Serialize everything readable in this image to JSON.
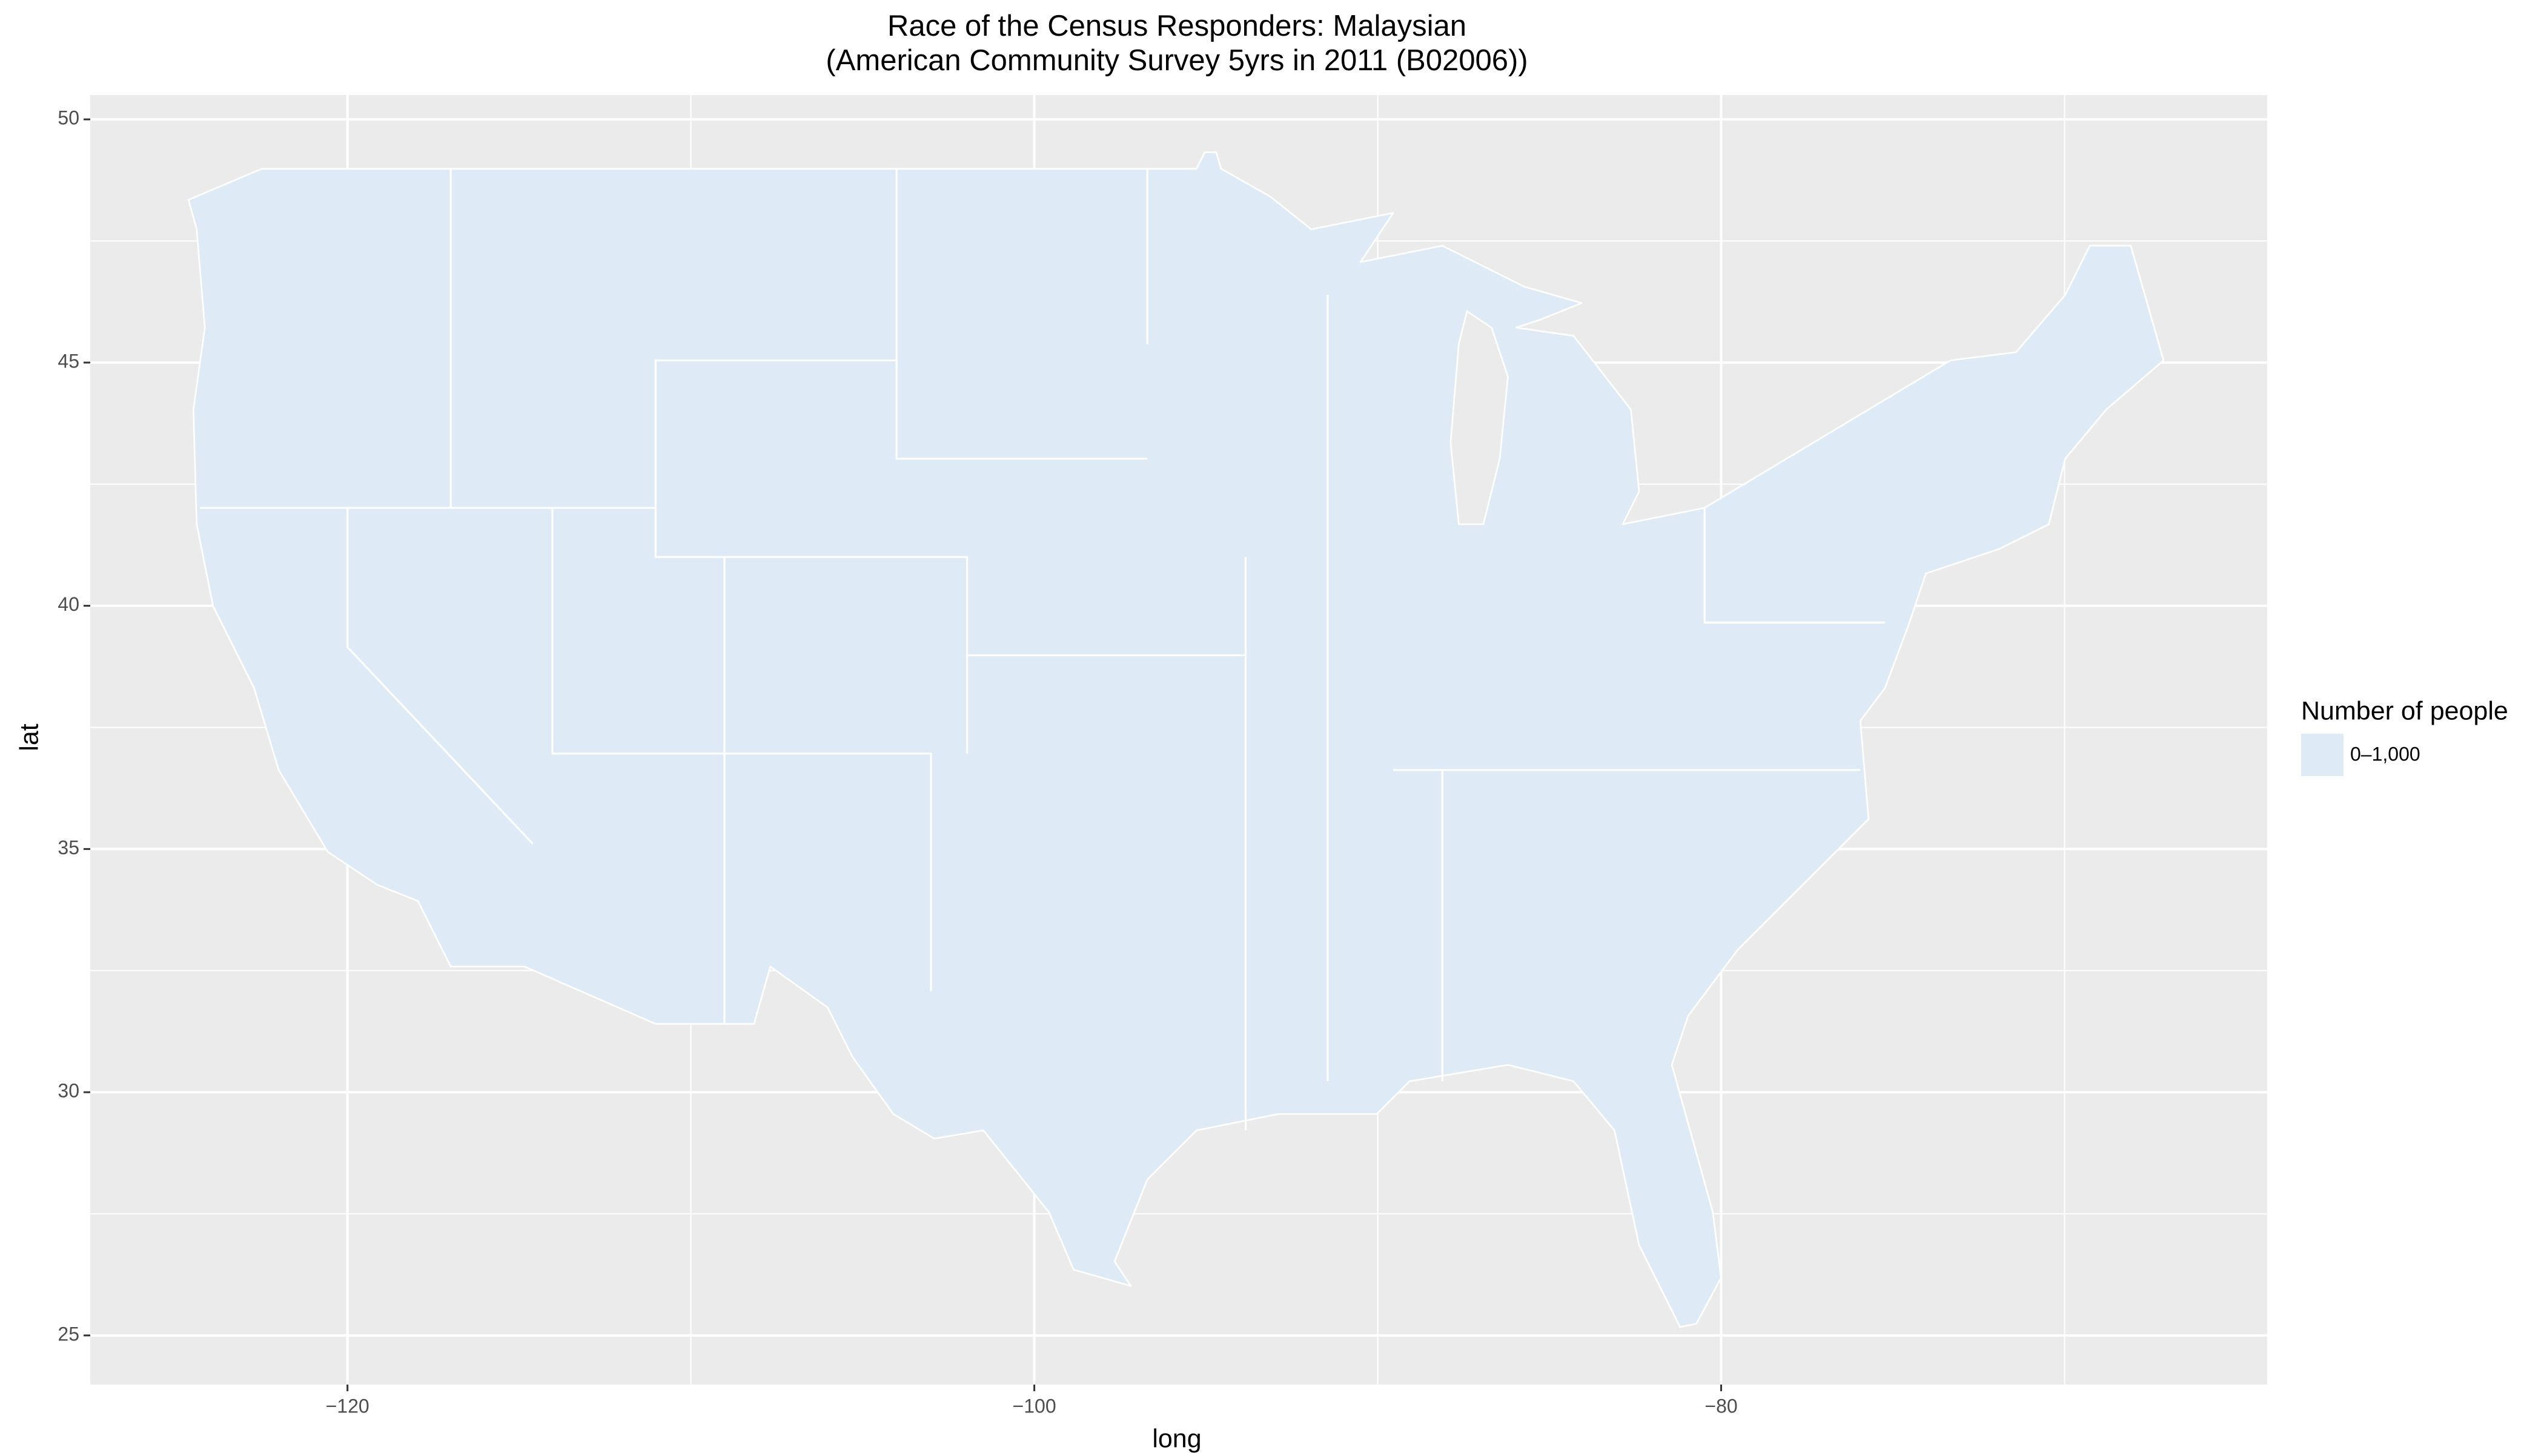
{
  "chart_data": {
    "type": "map",
    "title": "Race of the Census Responders: Malaysian",
    "subtitle": "(American Community Survey 5yrs in 2011 (B02006))",
    "x_label": "long",
    "y_label": "lat",
    "xlim": [
      -127.49,
      -64.1
    ],
    "ylim": [
      23.99,
      50.5
    ],
    "xticks": [
      {
        "value": -120,
        "label": "−120"
      },
      {
        "value": -100,
        "label": "−100"
      },
      {
        "value": -80,
        "label": "−80"
      }
    ],
    "yticks": [
      25,
      30,
      35,
      40,
      45,
      50
    ],
    "grid": true,
    "legend_title": "Number of people",
    "legend": [
      {
        "label": "0–1,000",
        "color": "#deebf7"
      }
    ]
  }
}
